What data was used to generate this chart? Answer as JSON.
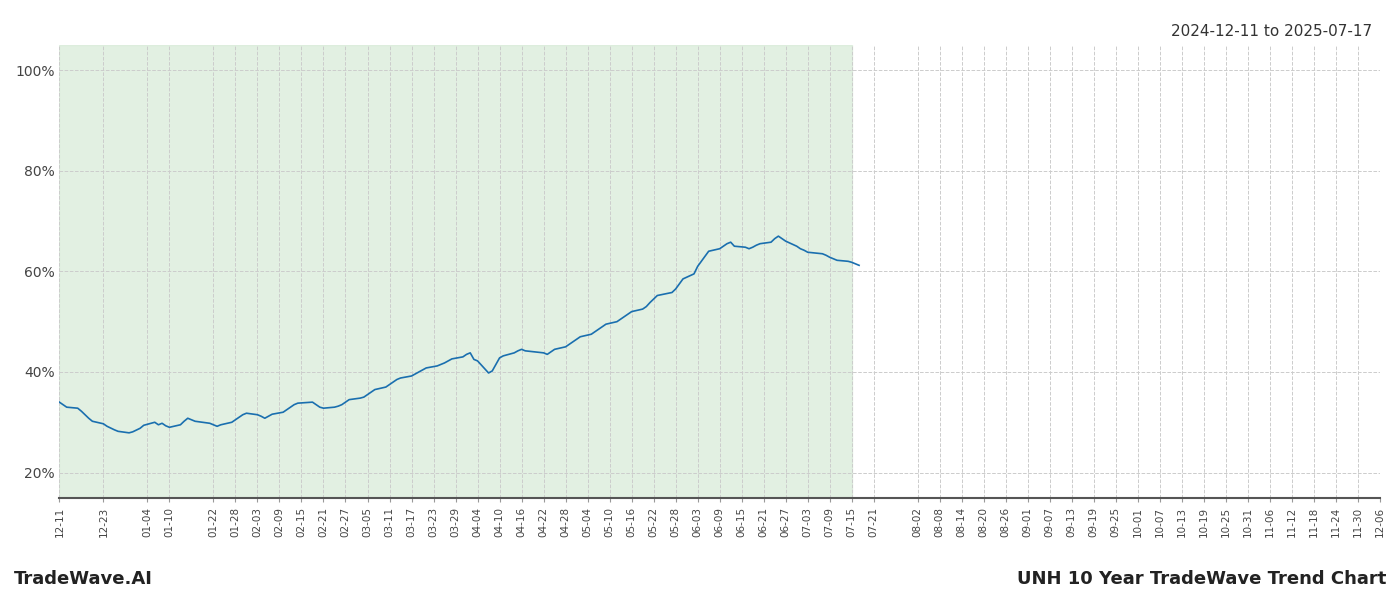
{
  "title": "UNH 10 Year TradeWave Trend Chart",
  "date_range_text": "2024-12-11 to 2025-07-17",
  "footer_left": "TradeWave.AI",
  "footer_right": "UNH 10 Year TradeWave Trend Chart",
  "line_color": "#1a6faf",
  "line_width": 1.2,
  "shaded_color": "#d6ead6",
  "shaded_alpha": 0.7,
  "background_color": "#ffffff",
  "grid_color": "#cccccc",
  "grid_style": "--",
  "yticks": [
    0.2,
    0.4,
    0.6,
    0.8,
    1.0
  ],
  "ylim": [
    0.15,
    1.05
  ],
  "shaded_start_date": "2024-12-11",
  "shaded_end_date": "2025-07-15",
  "start_date": "2024-12-11",
  "end_date": "2025-12-06",
  "x_tick_dates": [
    "2024-12-11",
    "2024-12-23",
    "2025-01-04",
    "2025-01-10",
    "2025-01-22",
    "2025-01-28",
    "2025-02-03",
    "2025-02-09",
    "2025-02-15",
    "2025-02-21",
    "2025-02-27",
    "2025-03-05",
    "2025-03-11",
    "2025-03-17",
    "2025-03-23",
    "2025-03-29",
    "2025-04-04",
    "2025-04-10",
    "2025-04-16",
    "2025-04-22",
    "2025-04-28",
    "2025-05-04",
    "2025-05-10",
    "2025-05-16",
    "2025-05-22",
    "2025-05-28",
    "2025-06-03",
    "2025-06-09",
    "2025-06-15",
    "2025-06-21",
    "2025-06-27",
    "2025-07-03",
    "2025-07-09",
    "2025-07-15",
    "2025-07-21",
    "2025-08-02",
    "2025-08-08",
    "2025-08-14",
    "2025-08-20",
    "2025-08-26",
    "2025-09-01",
    "2025-09-07",
    "2025-09-13",
    "2025-09-19",
    "2025-09-25",
    "2025-10-01",
    "2025-10-07",
    "2025-10-13",
    "2025-10-19",
    "2025-10-25",
    "2025-10-31",
    "2025-11-06",
    "2025-11-12",
    "2025-11-18",
    "2025-11-24",
    "2025-11-30",
    "2025-12-06"
  ],
  "x_tick_labels": [
    "12-11",
    "12-23",
    "01-04",
    "01-10",
    "01-22",
    "01-28",
    "02-03",
    "02-09",
    "02-15",
    "02-21",
    "02-27",
    "03-05",
    "03-11",
    "03-17",
    "03-23",
    "03-29",
    "04-04",
    "04-10",
    "04-16",
    "04-22",
    "04-28",
    "05-04",
    "05-10",
    "05-16",
    "05-22",
    "05-28",
    "06-03",
    "06-09",
    "06-15",
    "06-21",
    "06-27",
    "07-03",
    "07-09",
    "07-15",
    "07-21",
    "08-02",
    "08-08",
    "08-14",
    "08-20",
    "08-26",
    "09-01",
    "09-07",
    "09-13",
    "09-19",
    "09-25",
    "10-01",
    "10-07",
    "10-13",
    "10-19",
    "10-25",
    "10-31",
    "11-06",
    "11-12",
    "11-18",
    "11-24",
    "11-30",
    "12-06"
  ],
  "data_dates": [
    "2024-12-11",
    "2024-12-12",
    "2024-12-13",
    "2024-12-16",
    "2024-12-17",
    "2024-12-18",
    "2024-12-19",
    "2024-12-20",
    "2024-12-23",
    "2024-12-24",
    "2024-12-26",
    "2024-12-27",
    "2024-12-30",
    "2024-12-31",
    "2025-01-02",
    "2025-01-03",
    "2025-01-06",
    "2025-01-07",
    "2025-01-08",
    "2025-01-09",
    "2025-01-10",
    "2025-01-13",
    "2025-01-14",
    "2025-01-15",
    "2025-01-16",
    "2025-01-17",
    "2025-01-21",
    "2025-01-22",
    "2025-01-23",
    "2025-01-24",
    "2025-01-27",
    "2025-01-28",
    "2025-01-29",
    "2025-01-30",
    "2025-01-31",
    "2025-02-03",
    "2025-02-04",
    "2025-02-05",
    "2025-02-06",
    "2025-02-07",
    "2025-02-10",
    "2025-02-11",
    "2025-02-12",
    "2025-02-13",
    "2025-02-14",
    "2025-02-18",
    "2025-02-19",
    "2025-02-20",
    "2025-02-21",
    "2025-02-24",
    "2025-02-25",
    "2025-02-26",
    "2025-02-27",
    "2025-02-28",
    "2025-03-03",
    "2025-03-04",
    "2025-03-05",
    "2025-03-06",
    "2025-03-07",
    "2025-03-10",
    "2025-03-11",
    "2025-03-12",
    "2025-03-13",
    "2025-03-14",
    "2025-03-17",
    "2025-03-18",
    "2025-03-19",
    "2025-03-20",
    "2025-03-21",
    "2025-03-24",
    "2025-03-25",
    "2025-03-26",
    "2025-03-27",
    "2025-03-28",
    "2025-03-31",
    "2025-04-01",
    "2025-04-02",
    "2025-04-03",
    "2025-04-04",
    "2025-04-07",
    "2025-04-08",
    "2025-04-09",
    "2025-04-10",
    "2025-04-11",
    "2025-04-14",
    "2025-04-15",
    "2025-04-16",
    "2025-04-17",
    "2025-04-22",
    "2025-04-23",
    "2025-04-24",
    "2025-04-25",
    "2025-04-28",
    "2025-04-29",
    "2025-04-30",
    "2025-05-01",
    "2025-05-02",
    "2025-05-05",
    "2025-05-06",
    "2025-05-07",
    "2025-05-08",
    "2025-05-09",
    "2025-05-12",
    "2025-05-13",
    "2025-05-14",
    "2025-05-15",
    "2025-05-16",
    "2025-05-19",
    "2025-05-20",
    "2025-05-21",
    "2025-05-22",
    "2025-05-23",
    "2025-05-27",
    "2025-05-28",
    "2025-05-29",
    "2025-05-30",
    "2025-06-02",
    "2025-06-03",
    "2025-06-04",
    "2025-06-05",
    "2025-06-06",
    "2025-06-09",
    "2025-06-10",
    "2025-06-11",
    "2025-06-12",
    "2025-06-13",
    "2025-06-16",
    "2025-06-17",
    "2025-06-18",
    "2025-06-19",
    "2025-06-20",
    "2025-06-23",
    "2025-06-24",
    "2025-06-25",
    "2025-06-26",
    "2025-06-27",
    "2025-06-30",
    "2025-07-01",
    "2025-07-02",
    "2025-07-03",
    "2025-07-07",
    "2025-07-08",
    "2025-07-09",
    "2025-07-10",
    "2025-07-11",
    "2025-07-14",
    "2025-07-15",
    "2025-07-16",
    "2025-07-17"
  ],
  "data_values": [
    0.34,
    0.335,
    0.33,
    0.328,
    0.322,
    0.315,
    0.308,
    0.302,
    0.297,
    0.292,
    0.285,
    0.282,
    0.279,
    0.281,
    0.288,
    0.294,
    0.3,
    0.295,
    0.298,
    0.293,
    0.29,
    0.295,
    0.302,
    0.308,
    0.305,
    0.302,
    0.298,
    0.295,
    0.292,
    0.295,
    0.3,
    0.305,
    0.31,
    0.315,
    0.318,
    0.315,
    0.312,
    0.308,
    0.312,
    0.316,
    0.32,
    0.325,
    0.33,
    0.335,
    0.338,
    0.34,
    0.335,
    0.33,
    0.328,
    0.33,
    0.332,
    0.335,
    0.34,
    0.345,
    0.348,
    0.35,
    0.355,
    0.36,
    0.365,
    0.37,
    0.375,
    0.38,
    0.385,
    0.388,
    0.392,
    0.396,
    0.4,
    0.404,
    0.408,
    0.412,
    0.415,
    0.418,
    0.422,
    0.426,
    0.43,
    0.435,
    0.438,
    0.425,
    0.422,
    0.398,
    0.402,
    0.415,
    0.428,
    0.432,
    0.438,
    0.442,
    0.445,
    0.442,
    0.438,
    0.435,
    0.44,
    0.445,
    0.45,
    0.455,
    0.46,
    0.465,
    0.47,
    0.475,
    0.48,
    0.485,
    0.49,
    0.495,
    0.5,
    0.505,
    0.51,
    0.515,
    0.52,
    0.525,
    0.53,
    0.538,
    0.545,
    0.552,
    0.558,
    0.565,
    0.575,
    0.585,
    0.595,
    0.61,
    0.62,
    0.63,
    0.64,
    0.645,
    0.65,
    0.655,
    0.658,
    0.65,
    0.648,
    0.645,
    0.648,
    0.652,
    0.655,
    0.658,
    0.665,
    0.67,
    0.665,
    0.66,
    0.65,
    0.645,
    0.642,
    0.638,
    0.635,
    0.632,
    0.628,
    0.625,
    0.622,
    0.62,
    0.618,
    0.615,
    0.612
  ]
}
